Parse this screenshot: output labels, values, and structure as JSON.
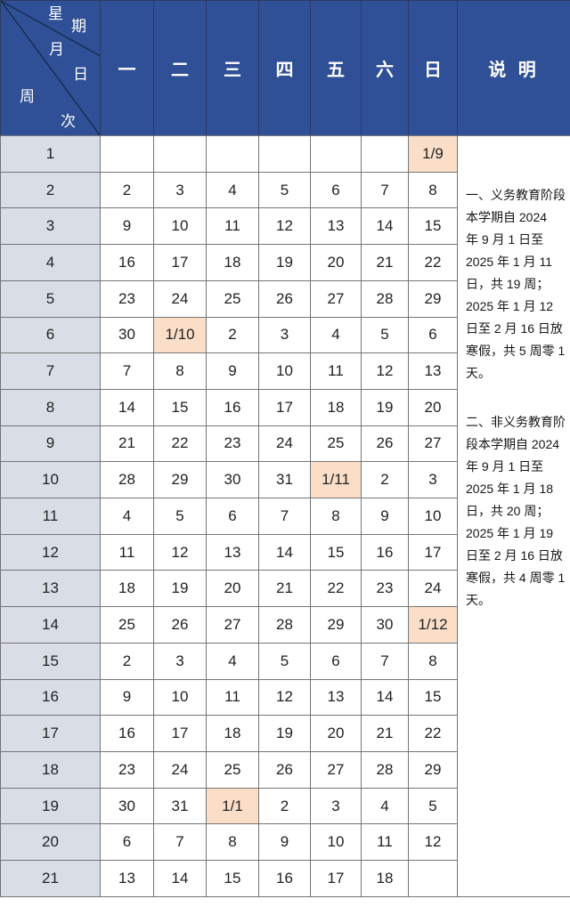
{
  "header": {
    "corner": {
      "weekday": [
        "星",
        "期"
      ],
      "monthday": [
        "月",
        "日"
      ],
      "weekno": [
        "周",
        "次"
      ]
    },
    "days": [
      "一",
      "二",
      "三",
      "四",
      "五",
      "六",
      "日"
    ],
    "notes_title": "说 明"
  },
  "weeks": [
    {
      "week": "1",
      "days": [
        "",
        "",
        "",
        "",
        "",
        "",
        "1/9"
      ],
      "highlight": 6
    },
    {
      "week": "2",
      "days": [
        "2",
        "3",
        "4",
        "5",
        "6",
        "7",
        "8"
      ],
      "highlight": null
    },
    {
      "week": "3",
      "days": [
        "9",
        "10",
        "11",
        "12",
        "13",
        "14",
        "15"
      ],
      "highlight": null
    },
    {
      "week": "4",
      "days": [
        "16",
        "17",
        "18",
        "19",
        "20",
        "21",
        "22"
      ],
      "highlight": null
    },
    {
      "week": "5",
      "days": [
        "23",
        "24",
        "25",
        "26",
        "27",
        "28",
        "29"
      ],
      "highlight": null
    },
    {
      "week": "6",
      "days": [
        "30",
        "1/10",
        "2",
        "3",
        "4",
        "5",
        "6"
      ],
      "highlight": 1
    },
    {
      "week": "7",
      "days": [
        "7",
        "8",
        "9",
        "10",
        "11",
        "12",
        "13"
      ],
      "highlight": null
    },
    {
      "week": "8",
      "days": [
        "14",
        "15",
        "16",
        "17",
        "18",
        "19",
        "20"
      ],
      "highlight": null
    },
    {
      "week": "9",
      "days": [
        "21",
        "22",
        "23",
        "24",
        "25",
        "26",
        "27"
      ],
      "highlight": null
    },
    {
      "week": "10",
      "days": [
        "28",
        "29",
        "30",
        "31",
        "1/11",
        "2",
        "3"
      ],
      "highlight": 4
    },
    {
      "week": "11",
      "days": [
        "4",
        "5",
        "6",
        "7",
        "8",
        "9",
        "10"
      ],
      "highlight": null
    },
    {
      "week": "12",
      "days": [
        "11",
        "12",
        "13",
        "14",
        "15",
        "16",
        "17"
      ],
      "highlight": null
    },
    {
      "week": "13",
      "days": [
        "18",
        "19",
        "20",
        "21",
        "22",
        "23",
        "24"
      ],
      "highlight": null
    },
    {
      "week": "14",
      "days": [
        "25",
        "26",
        "27",
        "28",
        "29",
        "30",
        "1/12"
      ],
      "highlight": 6
    },
    {
      "week": "15",
      "days": [
        "2",
        "3",
        "4",
        "5",
        "6",
        "7",
        "8"
      ],
      "highlight": null
    },
    {
      "week": "16",
      "days": [
        "9",
        "10",
        "11",
        "12",
        "13",
        "14",
        "15"
      ],
      "highlight": null
    },
    {
      "week": "17",
      "days": [
        "16",
        "17",
        "18",
        "19",
        "20",
        "21",
        "22"
      ],
      "highlight": null
    },
    {
      "week": "18",
      "days": [
        "23",
        "24",
        "25",
        "26",
        "27",
        "28",
        "29"
      ],
      "highlight": null
    },
    {
      "week": "19",
      "days": [
        "30",
        "31",
        "1/1",
        "2",
        "3",
        "4",
        "5"
      ],
      "highlight": 2
    },
    {
      "week": "20",
      "days": [
        "6",
        "7",
        "8",
        "9",
        "10",
        "11",
        "12"
      ],
      "highlight": null
    },
    {
      "week": "21",
      "days": [
        "13",
        "14",
        "15",
        "16",
        "17",
        "18",
        ""
      ],
      "highlight": null
    }
  ],
  "notes": {
    "item1": "一、义务教育阶段\n本学期自 2024\n年 9 月 1 日至\n2025 年 1 月 11\n日，共 19 周；\n2025 年 1 月 12\n日至 2 月 16 日放\n寒假，共 5 周零 1\n天。",
    "item2": "二、非义务教育阶\n段本学期自 2024\n年 9 月 1 日至\n2025 年 1 月 18\n日，共 20 周；\n2025 年 1 月 19\n日至 2 月 16 日放\n寒假，共 4 周零 1\n天。"
  },
  "colors": {
    "header_blue": "#2f4f96",
    "header_divider": "#2b3a5f",
    "header_text": "#ffffff",
    "week_col_bg": "#d9dde6",
    "highlight_bg": "#fadec8",
    "grid_border": "#757575",
    "body_text": "#222222"
  }
}
